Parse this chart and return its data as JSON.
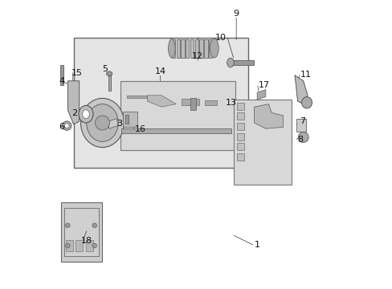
{
  "background_color": "#ffffff",
  "fig_width": 4.89,
  "fig_height": 3.6,
  "dpi": 100
}
